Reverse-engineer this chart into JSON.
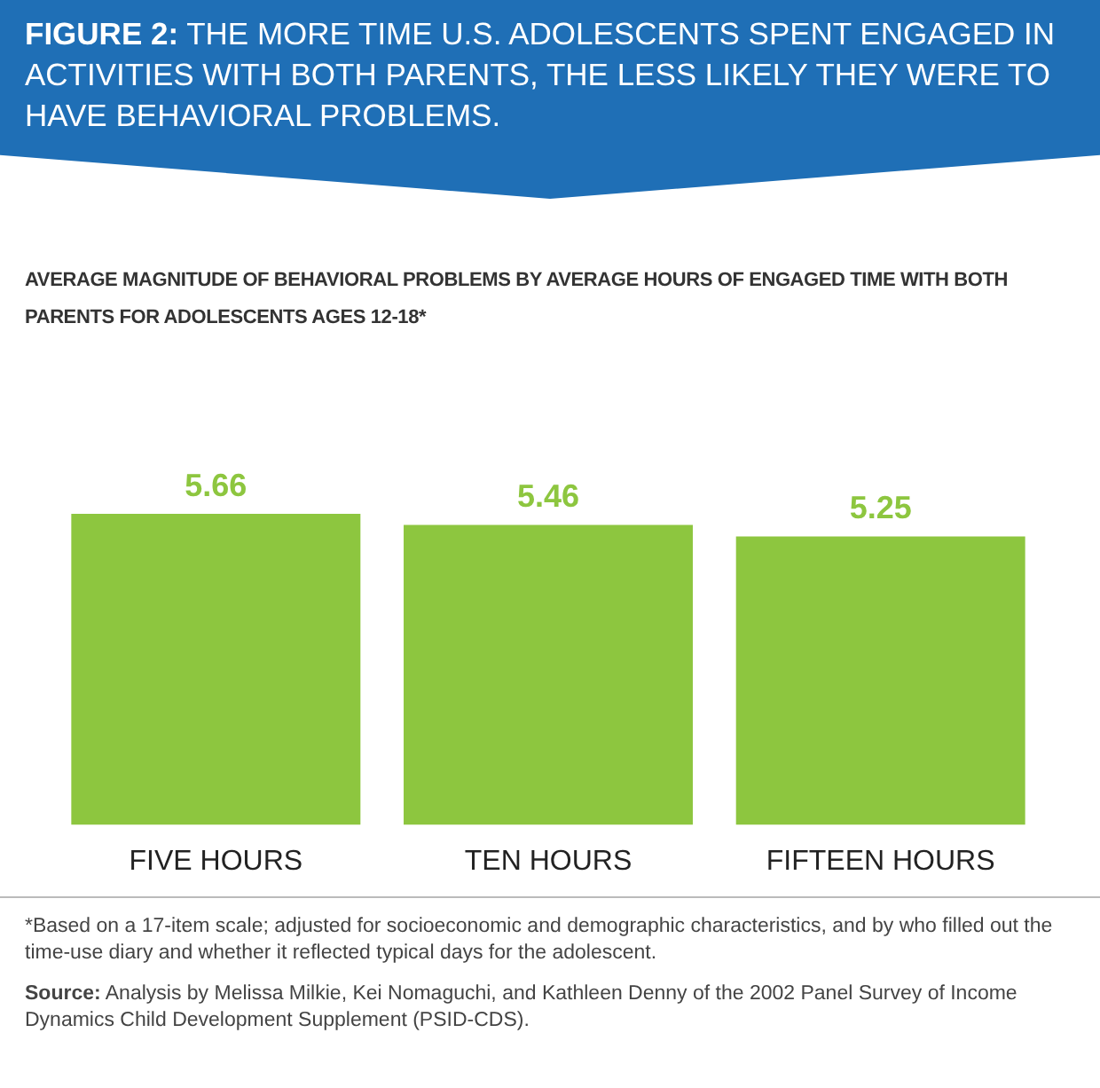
{
  "chart_data": {
    "type": "bar",
    "title": "FIGURE 2: THE MORE TIME U.S. ADOLESCENTS SPENT ENGAGED IN ACTIVITIES WITH BOTH PARENTS, THE LESS LIKELY THEY WERE TO HAVE BEHAVIORAL PROBLEMS.",
    "subtitle": "AVERAGE MAGNITUDE OF BEHAVIORAL PROBLEMS BY AVERAGE HOURS OF ENGAGED TIME WITH BOTH PARENTS FOR ADOLESCENTS AGES 12-18*",
    "categories": [
      "FIVE HOURS",
      "TEN HOURS",
      "FIFTEEN HOURS"
    ],
    "values": [
      5.66,
      5.46,
      5.25
    ],
    "color": "#8dc63f",
    "data_labels": true,
    "grid": false,
    "legend": false,
    "tick_labels": "x",
    "annotations": [
      "*Based on a 17-item scale; adjusted for socioeconomic and demographic characteristics, and by who filled out the time-use diary and whether it reflected typical days for the adolescent.",
      "Source: Analysis by Melissa Milkie, Kei Nomaguchi, and Kathleen Denny of the 2002 Panel Survey of Income Dynamics Child Development Supplement (PSID-CDS)."
    ]
  }
}
